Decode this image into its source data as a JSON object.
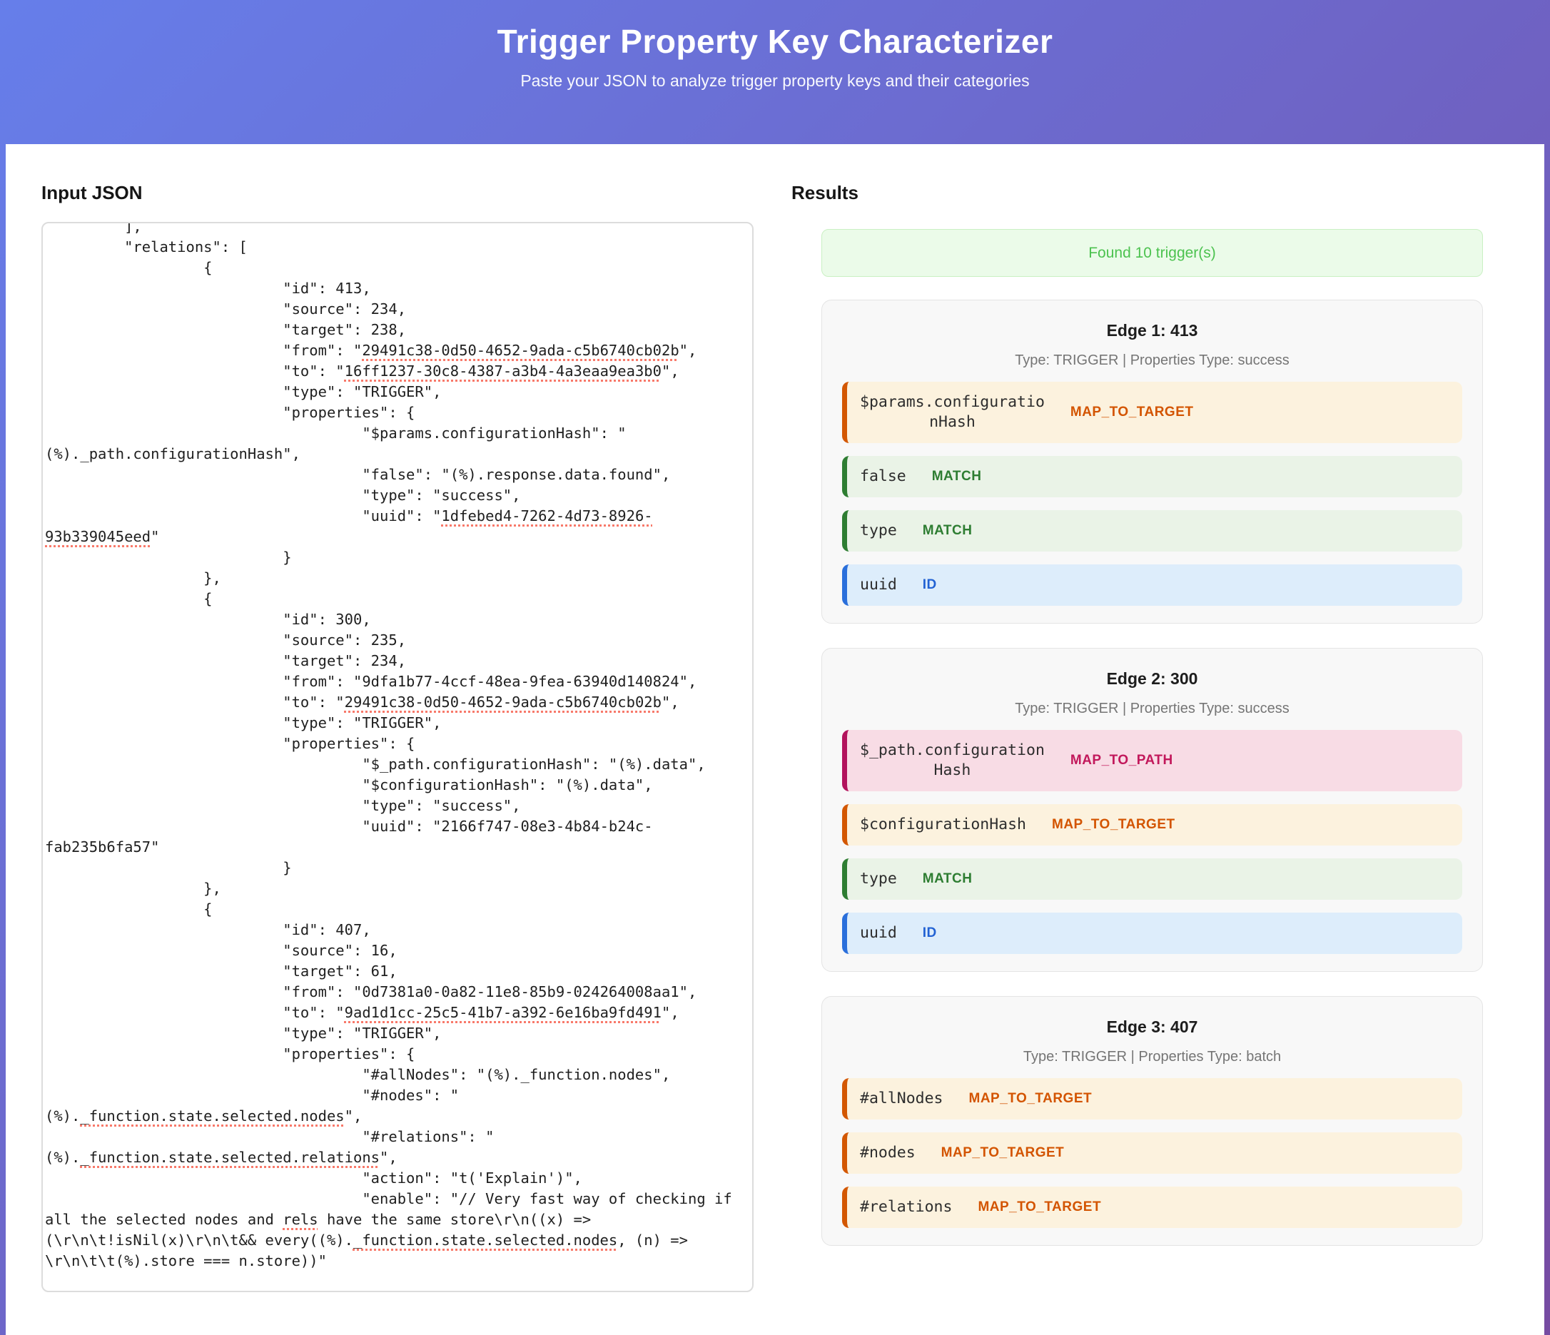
{
  "header": {
    "title": "Trigger Property Key Characterizer",
    "subtitle": "Paste your JSON to analyze trigger property keys and their categories"
  },
  "input_panel": {
    "heading": "Input JSON",
    "code": "\t],\n\t\"relations\": [\n\t\t{\n\t\t\t\"id\": 413,\n\t\t\t\"source\": 234,\n\t\t\t\"target\": 238,\n\t\t\t\"from\": \"29491c38-0d50-4652-9ada-c5b6740cb02b\",\n\t\t\t\"to\": \"16ff1237-30c8-4387-a3b4-4a3eaa9ea3b0\",\n\t\t\t\"type\": \"TRIGGER\",\n\t\t\t\"properties\": {\n\t\t\t\t\"$params.configurationHash\": \"(%)._path.configurationHash\",\n\t\t\t\t\"false\": \"(%).response.data.found\",\n\t\t\t\t\"type\": \"success\",\n\t\t\t\t\"uuid\": \"1dfebed4-7262-4d73-8926-93b339045eed\"\n\t\t\t}\n\t\t},\n\t\t{\n\t\t\t\"id\": 300,\n\t\t\t\"source\": 235,\n\t\t\t\"target\": 234,\n\t\t\t\"from\": \"9dfa1b77-4ccf-48ea-9fea-63940d140824\",\n\t\t\t\"to\": \"29491c38-0d50-4652-9ada-c5b6740cb02b\",\n\t\t\t\"type\": \"TRIGGER\",\n\t\t\t\"properties\": {\n\t\t\t\t\"$_path.configurationHash\": \"(%).data\",\n\t\t\t\t\"$configurationHash\": \"(%).data\",\n\t\t\t\t\"type\": \"success\",\n\t\t\t\t\"uuid\": \"2166f747-08e3-4b84-b24c-fab235b6fa57\"\n\t\t\t}\n\t\t},\n\t\t{\n\t\t\t\"id\": 407,\n\t\t\t\"source\": 16,\n\t\t\t\"target\": 61,\n\t\t\t\"from\": \"0d7381a0-0a82-11e8-85b9-024264008aa1\",\n\t\t\t\"to\": \"9ad1d1cc-25c5-41b7-a392-6e16ba9fd491\",\n\t\t\t\"type\": \"TRIGGER\",\n\t\t\t\"properties\": {\n\t\t\t\t\"#allNodes\": \"(%)._function.nodes\",\n\t\t\t\t\"#nodes\": \"(%)._function.state.selected.nodes\",\n\t\t\t\t\"#relations\": \"(%)._function.state.selected.relations\",\n\t\t\t\t\"action\": \"t('Explain')\",\n\t\t\t\t\"enable\": \"// Very fast way of checking if all the selected nodes and rels have the same store\\r\\n((x) => (\\r\\n\\t!isNil(x)\\r\\n\\t&& every((%)._function.state.selected.nodes, (n) => \\r\\n\\t\\t(%).store === n.store))\"",
    "misspelled_tokens": [
      "29491c38-0d50-4652-9ada-c5b6740cb02b",
      "16ff1237-30c8-4387-a3b4-4a3eaa9ea3b0",
      "1dfebed4-7262-4d73-8926-93b339045eed",
      "9ad1d1cc-25c5-41b7-a392-6e16ba9fd491",
      "_function.state.selected.nodes",
      "_function.state.selected.relations",
      "rels"
    ]
  },
  "results_panel": {
    "heading": "Results",
    "banner": "Found 10 trigger(s)",
    "edges": [
      {
        "title": "Edge 1: 413",
        "meta": "Type: TRIGGER | Properties Type: success",
        "rows": [
          {
            "key": "$params.configurationHash",
            "category": "MAP_TO_TARGET"
          },
          {
            "key": "false",
            "category": "MATCH"
          },
          {
            "key": "type",
            "category": "MATCH"
          },
          {
            "key": "uuid",
            "category": "ID"
          }
        ]
      },
      {
        "title": "Edge 2: 300",
        "meta": "Type: TRIGGER | Properties Type: success",
        "rows": [
          {
            "key": "$_path.configurationHash",
            "category": "MAP_TO_PATH"
          },
          {
            "key": "$configurationHash",
            "category": "MAP_TO_TARGET"
          },
          {
            "key": "type",
            "category": "MATCH"
          },
          {
            "key": "uuid",
            "category": "ID"
          }
        ]
      },
      {
        "title": "Edge 3: 407",
        "meta": "Type: TRIGGER | Properties Type: batch",
        "rows": [
          {
            "key": "#allNodes",
            "category": "MAP_TO_TARGET"
          },
          {
            "key": "#nodes",
            "category": "MAP_TO_TARGET"
          },
          {
            "key": "#relations",
            "category": "MAP_TO_TARGET"
          }
        ]
      }
    ]
  },
  "colors": {
    "header_gradient_start": "#667eea",
    "header_gradient_end": "#764ba2",
    "banner_text": "#4cc24f",
    "map_to_target": "#d35400",
    "match": "#2e7d32",
    "id": "#2262d3",
    "map_to_path": "#c2185b"
  }
}
